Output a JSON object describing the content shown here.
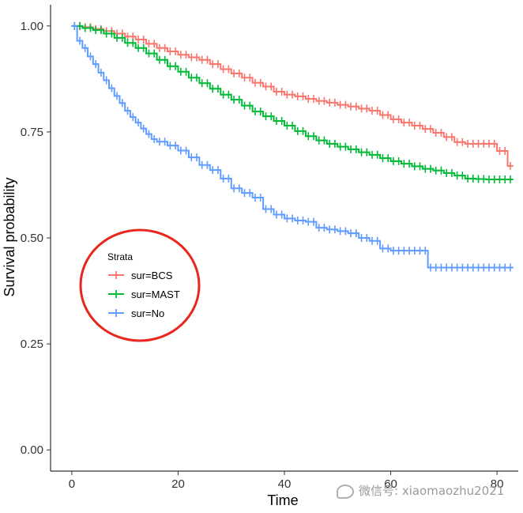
{
  "chart_data": {
    "type": "line",
    "xlabel": "Time",
    "ylabel": "Survival probability",
    "xlim": [
      -4,
      84
    ],
    "ylim": [
      -0.05,
      1.05
    ],
    "xticks": [
      0,
      20,
      40,
      60,
      80
    ],
    "yticks": [
      0.0,
      0.25,
      0.5,
      0.75,
      1.0
    ],
    "ytick_labels": [
      "0.00",
      "0.25",
      "0.50",
      "0.75",
      "1.00"
    ],
    "grid": false,
    "legend": {
      "title": "Strata",
      "placement": "center-left",
      "entries": [
        "sur=BCS",
        "sur=MAST",
        "sur=No"
      ],
      "highlighted_by_red_circle": true
    },
    "series": [
      {
        "name": "sur=BCS",
        "color": "#F8766D",
        "step": true,
        "x": [
          0,
          2,
          4,
          6,
          8,
          10,
          12,
          14,
          16,
          18,
          20,
          22,
          24,
          26,
          28,
          30,
          32,
          34,
          36,
          38,
          40,
          42,
          44,
          46,
          48,
          50,
          52,
          54,
          56,
          58,
          60,
          62,
          64,
          66,
          68,
          70,
          72,
          74,
          76,
          78,
          80,
          82,
          83
        ],
        "y": [
          1.0,
          0.997,
          0.993,
          0.988,
          0.982,
          0.975,
          0.968,
          0.958,
          0.948,
          0.94,
          0.932,
          0.926,
          0.92,
          0.91,
          0.898,
          0.888,
          0.878,
          0.866,
          0.857,
          0.845,
          0.838,
          0.834,
          0.828,
          0.823,
          0.819,
          0.814,
          0.81,
          0.805,
          0.8,
          0.79,
          0.78,
          0.772,
          0.765,
          0.757,
          0.748,
          0.738,
          0.726,
          0.722,
          0.722,
          0.722,
          0.705,
          0.67,
          0.67
        ]
      },
      {
        "name": "sur=MAST",
        "color": "#00BA38",
        "step": true,
        "x": [
          0,
          2,
          4,
          6,
          8,
          10,
          12,
          14,
          16,
          18,
          20,
          22,
          24,
          26,
          28,
          30,
          32,
          34,
          36,
          38,
          40,
          42,
          44,
          46,
          48,
          50,
          52,
          54,
          56,
          58,
          60,
          62,
          64,
          66,
          68,
          70,
          72,
          74,
          76,
          78,
          80,
          82,
          83
        ],
        "y": [
          1.0,
          0.995,
          0.99,
          0.982,
          0.972,
          0.96,
          0.948,
          0.935,
          0.92,
          0.905,
          0.892,
          0.878,
          0.865,
          0.852,
          0.838,
          0.826,
          0.812,
          0.798,
          0.787,
          0.776,
          0.765,
          0.752,
          0.74,
          0.73,
          0.722,
          0.715,
          0.709,
          0.702,
          0.696,
          0.688,
          0.681,
          0.675,
          0.669,
          0.663,
          0.659,
          0.653,
          0.647,
          0.64,
          0.639,
          0.638,
          0.638,
          0.638,
          0.638
        ]
      },
      {
        "name": "sur=No",
        "color": "#619CFF",
        "step": true,
        "x": [
          0,
          1,
          2,
          3,
          4,
          5,
          6,
          7,
          8,
          9,
          10,
          11,
          12,
          13,
          14,
          15,
          16,
          18,
          20,
          22,
          24,
          26,
          28,
          30,
          32,
          34,
          36,
          38,
          40,
          42,
          44,
          46,
          48,
          50,
          52,
          54,
          56,
          58,
          60,
          62,
          64,
          66,
          67,
          70,
          75,
          80,
          83
        ],
        "y": [
          1.0,
          0.965,
          0.948,
          0.928,
          0.91,
          0.89,
          0.872,
          0.853,
          0.835,
          0.818,
          0.8,
          0.785,
          0.772,
          0.758,
          0.745,
          0.733,
          0.727,
          0.718,
          0.706,
          0.69,
          0.672,
          0.66,
          0.64,
          0.617,
          0.606,
          0.595,
          0.568,
          0.555,
          0.546,
          0.541,
          0.538,
          0.524,
          0.52,
          0.516,
          0.511,
          0.5,
          0.493,
          0.475,
          0.47,
          0.47,
          0.47,
          0.47,
          0.43,
          0.43,
          0.43,
          0.43,
          0.43
        ]
      }
    ]
  },
  "watermark": {
    "text": "微信号: xiaomaozhu2021"
  }
}
